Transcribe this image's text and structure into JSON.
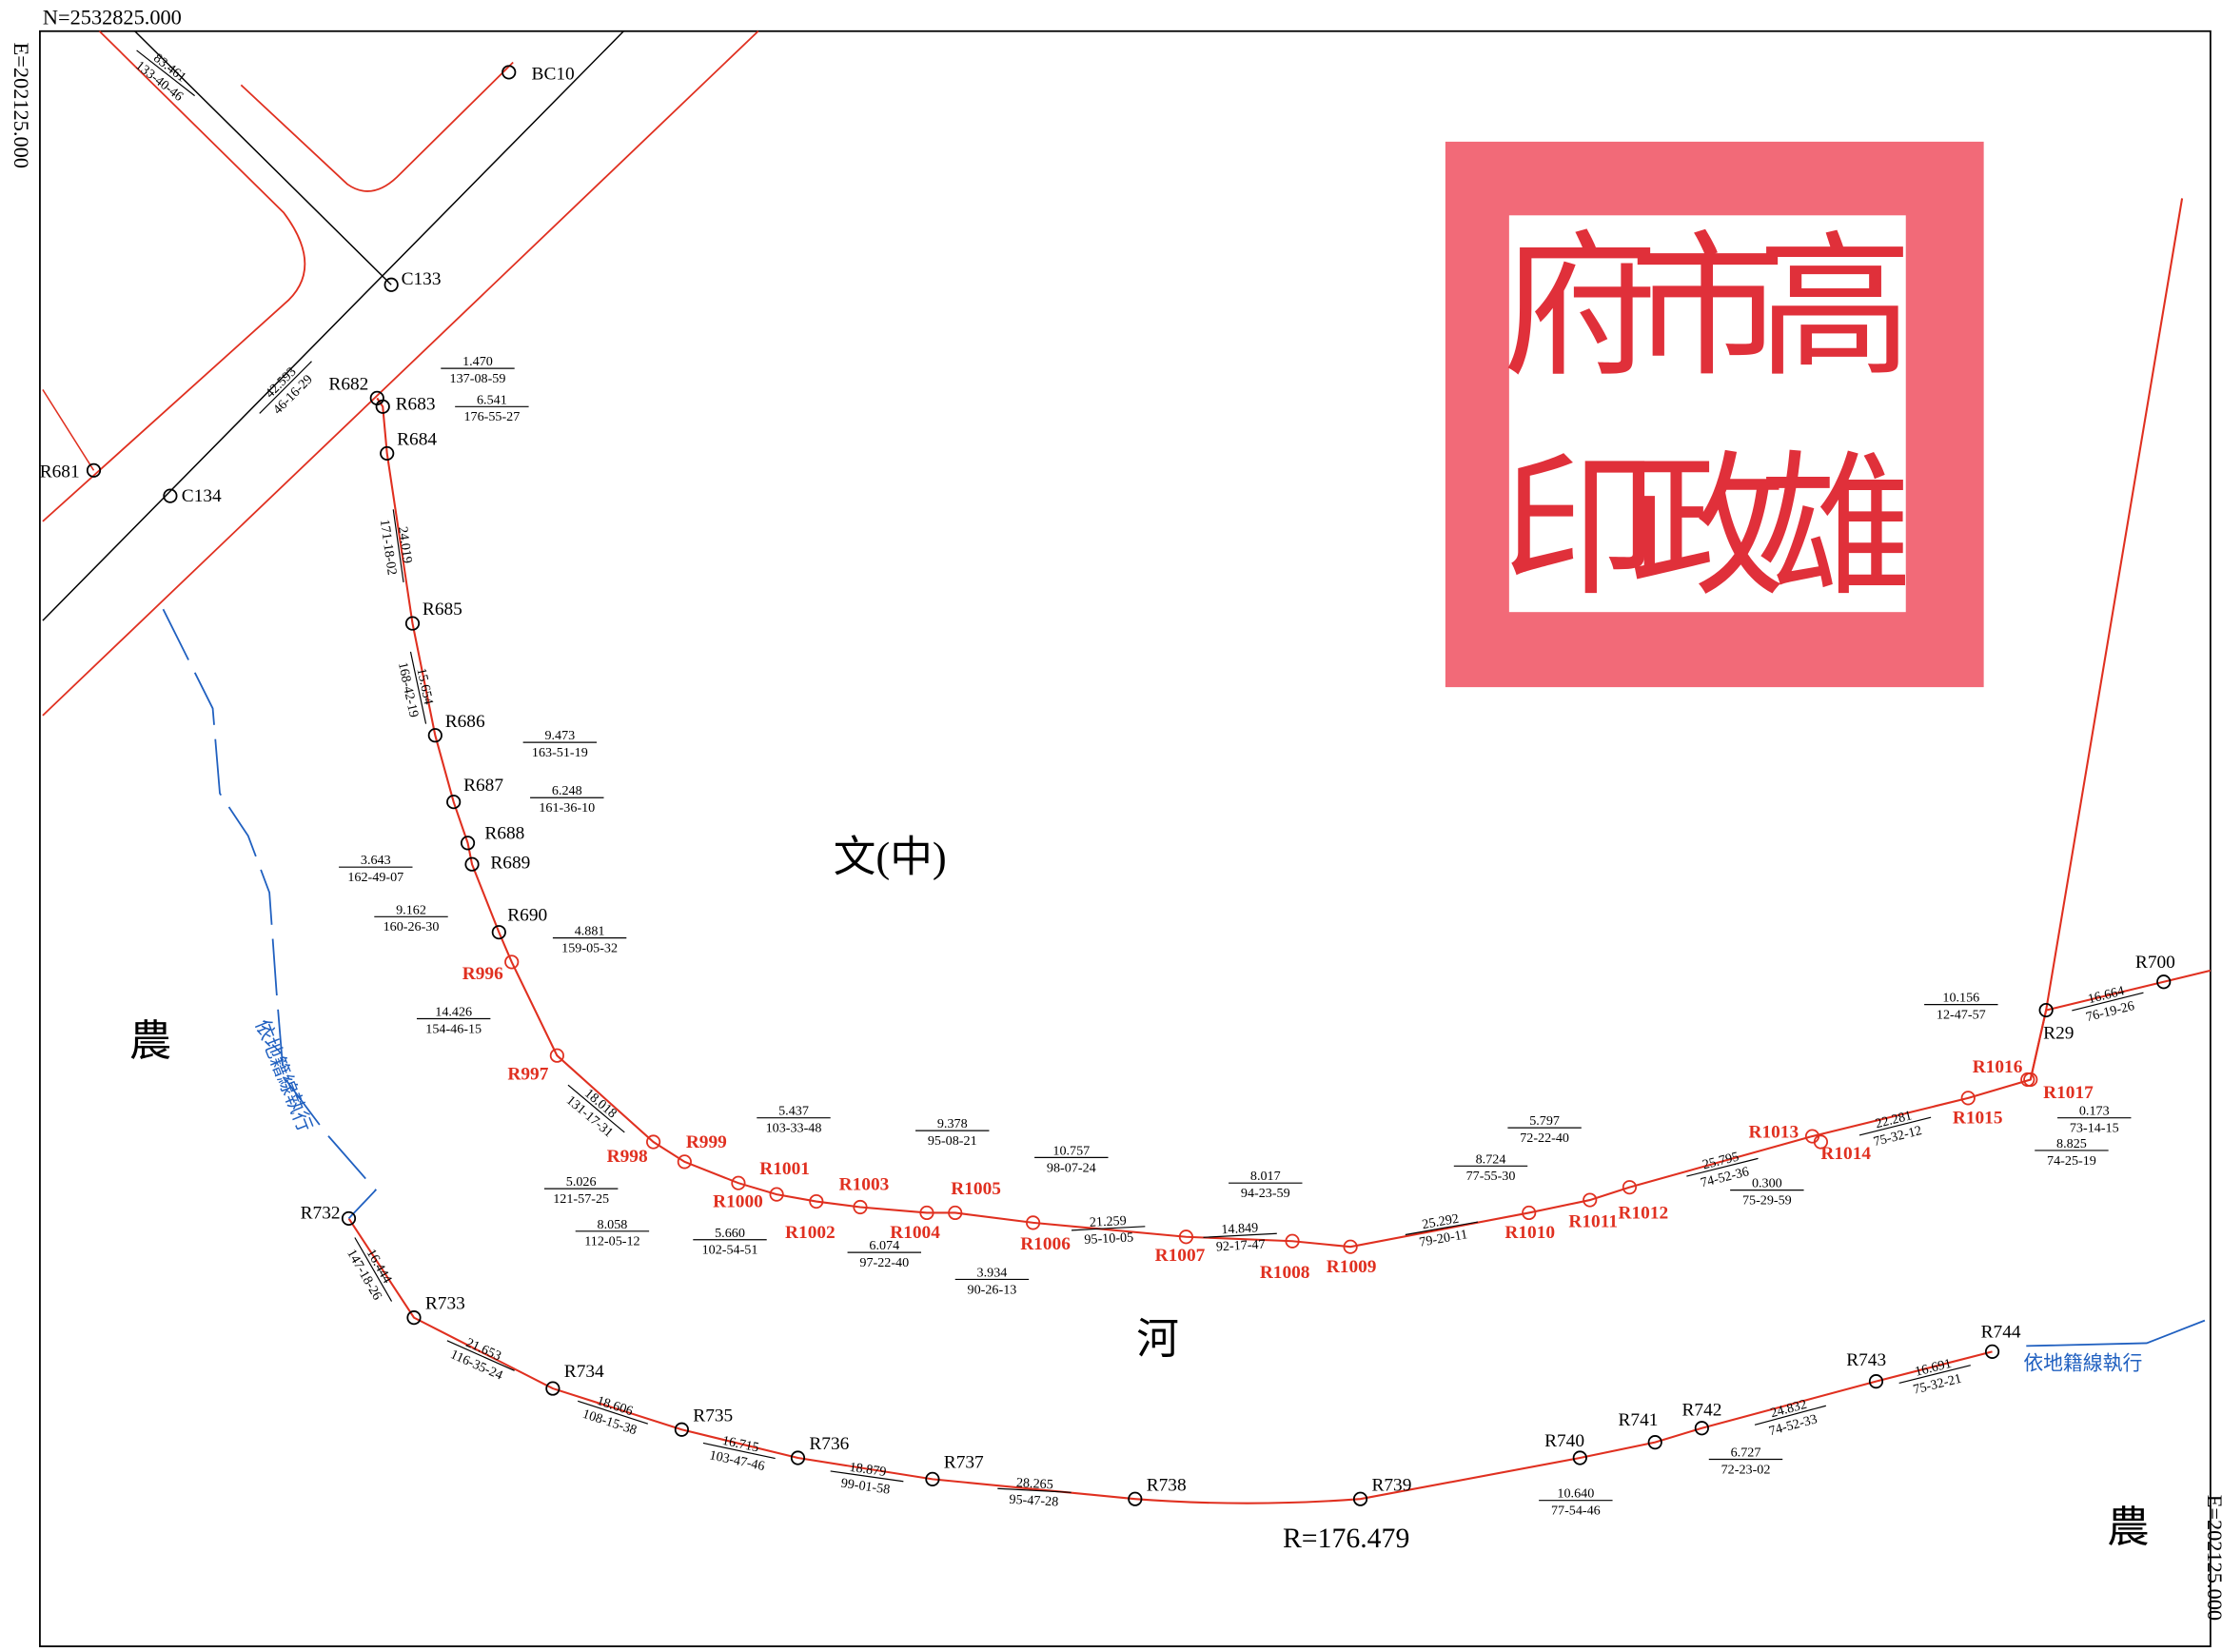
{
  "header": {
    "north": "N=2532825.000",
    "east_left": "E=202125.000",
    "east_right": "E=202125.000"
  },
  "points": [
    {
      "label": "BC10",
      "color": "#000"
    },
    {
      "label": "C133",
      "color": "#000"
    },
    {
      "label": "C134",
      "color": "#000"
    },
    {
      "label": "R681",
      "color": "#000"
    },
    {
      "label": "R682",
      "color": "#000"
    },
    {
      "label": "R683",
      "color": "#000"
    },
    {
      "label": "R684",
      "color": "#000"
    },
    {
      "label": "R685",
      "color": "#000"
    },
    {
      "label": "R686",
      "color": "#000"
    },
    {
      "label": "R687",
      "color": "#000"
    },
    {
      "label": "R688",
      "color": "#000"
    },
    {
      "label": "R689",
      "color": "#000"
    },
    {
      "label": "R690",
      "color": "#000"
    },
    {
      "label": "R996",
      "color": "#e03020"
    },
    {
      "label": "R997",
      "color": "#e03020"
    },
    {
      "label": "R998",
      "color": "#e03020"
    },
    {
      "label": "R999",
      "color": "#e03020"
    },
    {
      "label": "R1000",
      "color": "#e03020"
    },
    {
      "label": "R1001",
      "color": "#e03020"
    },
    {
      "label": "R1002",
      "color": "#e03020"
    },
    {
      "label": "R1003",
      "color": "#e03020"
    },
    {
      "label": "R1004",
      "color": "#e03020"
    },
    {
      "label": "R1005",
      "color": "#e03020"
    },
    {
      "label": "R1006",
      "color": "#e03020"
    },
    {
      "label": "R1007",
      "color": "#e03020"
    },
    {
      "label": "R1008",
      "color": "#e03020"
    },
    {
      "label": "R1009",
      "color": "#e03020"
    },
    {
      "label": "R1010",
      "color": "#e03020"
    },
    {
      "label": "R1011",
      "color": "#e03020"
    },
    {
      "label": "R1012",
      "color": "#e03020"
    },
    {
      "label": "R1013",
      "color": "#e03020"
    },
    {
      "label": "R1014",
      "color": "#e03020"
    },
    {
      "label": "R1015",
      "color": "#e03020"
    },
    {
      "label": "R1016",
      "color": "#e03020"
    },
    {
      "label": "R1017",
      "color": "#e03020"
    },
    {
      "label": "R29",
      "color": "#000"
    },
    {
      "label": "R700",
      "color": "#000"
    },
    {
      "label": "R732",
      "color": "#000"
    },
    {
      "label": "R733",
      "color": "#000"
    },
    {
      "label": "R734",
      "color": "#000"
    },
    {
      "label": "R735",
      "color": "#000"
    },
    {
      "label": "R736",
      "color": "#000"
    },
    {
      "label": "R737",
      "color": "#000"
    },
    {
      "label": "R738",
      "color": "#000"
    },
    {
      "label": "R739",
      "color": "#000"
    },
    {
      "label": "R740",
      "color": "#000"
    },
    {
      "label": "R741",
      "color": "#000"
    },
    {
      "label": "R742",
      "color": "#000"
    },
    {
      "label": "R743",
      "color": "#000"
    },
    {
      "label": "R744",
      "color": "#000"
    }
  ],
  "segments": [
    {
      "distance": "83.461",
      "bearing": "133-40-46"
    },
    {
      "distance": "42.593",
      "bearing": "46-16-29"
    },
    {
      "distance": "1.470",
      "bearing": "137-08-59"
    },
    {
      "distance": "6.541",
      "bearing": "176-55-27"
    },
    {
      "distance": "24.019",
      "bearing": "171-18-02"
    },
    {
      "distance": "15.654",
      "bearing": "168-42-19"
    },
    {
      "distance": "9.473",
      "bearing": "163-51-19"
    },
    {
      "distance": "6.248",
      "bearing": "161-36-10"
    },
    {
      "distance": "3.643",
      "bearing": "162-49-07"
    },
    {
      "distance": "9.162",
      "bearing": "160-26-30"
    },
    {
      "distance": "4.881",
      "bearing": "159-05-32"
    },
    {
      "distance": "14.426",
      "bearing": "154-46-15"
    },
    {
      "distance": "18.018",
      "bearing": "131-17-31"
    },
    {
      "distance": "5.437",
      "bearing": "103-33-48"
    },
    {
      "distance": "5.026",
      "bearing": "121-57-25"
    },
    {
      "distance": "8.058",
      "bearing": "112-05-12"
    },
    {
      "distance": "5.660",
      "bearing": "102-54-51"
    },
    {
      "distance": "9.378",
      "bearing": "95-08-21"
    },
    {
      "distance": "10.757",
      "bearing": "98-07-24"
    },
    {
      "distance": "6.074",
      "bearing": "97-22-40"
    },
    {
      "distance": "3.934",
      "bearing": "90-26-13"
    },
    {
      "distance": "21.259",
      "bearing": "95-10-05"
    },
    {
      "distance": "14.849",
      "bearing": "92-17-47"
    },
    {
      "distance": "8.017",
      "bearing": "94-23-59"
    },
    {
      "distance": "25.292",
      "bearing": "79-20-11"
    },
    {
      "distance": "8.724",
      "bearing": "77-55-30"
    },
    {
      "distance": "5.797",
      "bearing": "72-22-40"
    },
    {
      "distance": "25.795",
      "bearing": "74-52-36"
    },
    {
      "distance": "0.300",
      "bearing": "75-29-59"
    },
    {
      "distance": "22.281",
      "bearing": "75-32-12"
    },
    {
      "distance": "10.156",
      "bearing": "12-47-57"
    },
    {
      "distance": "16.664",
      "bearing": "76-19-26"
    },
    {
      "distance": "0.173",
      "bearing": "73-14-15"
    },
    {
      "distance": "8.825",
      "bearing": "74-25-19"
    },
    {
      "distance": "16.444",
      "bearing": "147-18-26"
    },
    {
      "distance": "21.653",
      "bearing": "116-35-24"
    },
    {
      "distance": "18.606",
      "bearing": "108-15-38"
    },
    {
      "distance": "16.715",
      "bearing": "103-47-46"
    },
    {
      "distance": "18.879",
      "bearing": "99-01-58"
    },
    {
      "distance": "28.265",
      "bearing": "95-47-28"
    },
    {
      "distance": "10.640",
      "bearing": "77-54-46"
    },
    {
      "distance": "6.727",
      "bearing": "72-23-02"
    },
    {
      "distance": "24.832",
      "bearing": "74-52-33"
    },
    {
      "distance": "16.691",
      "bearing": "75-32-21"
    }
  ],
  "areas": [
    "文(中)",
    "河",
    "農",
    "農"
  ],
  "notes": [
    "依地籍線執行",
    "依地籍線執行"
  ],
  "radius": "R=176.479",
  "seal": [
    "高",
    "雄",
    "市",
    "政",
    "府",
    "印"
  ]
}
